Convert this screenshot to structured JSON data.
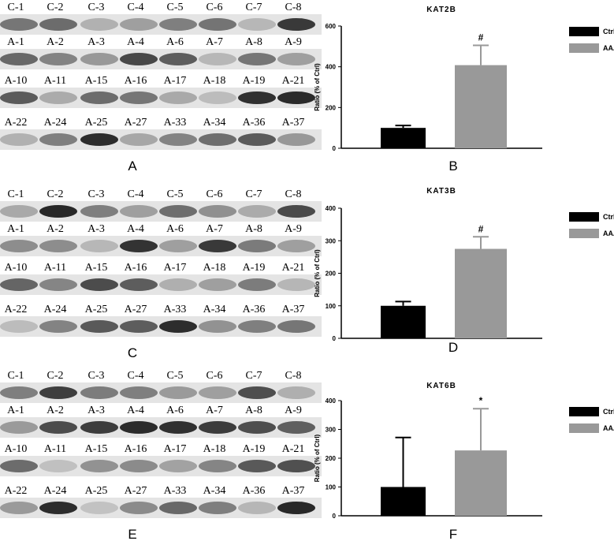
{
  "blots": [
    {
      "panel": "A",
      "rows": [
        [
          "C-1",
          "C-2",
          "C-3",
          "C-4",
          "C-5",
          "C-6",
          "C-7",
          "C-8"
        ],
        [
          "A-1",
          "A-2",
          "A-3",
          "A-4",
          "A-6",
          "A-7",
          "A-8",
          "A-9"
        ],
        [
          "A-10",
          "A-11",
          "A-15",
          "A-16",
          "A-17",
          "A-18",
          "A-19",
          "A-21"
        ],
        [
          "A-22",
          "A-24",
          "A-25",
          "A-27",
          "A-33",
          "A-34",
          "A-36",
          "A-37"
        ]
      ]
    },
    {
      "panel": "C",
      "rows": [
        [
          "C-1",
          "C-2",
          "C-3",
          "C-4",
          "C-5",
          "C-6",
          "C-7",
          "C-8"
        ],
        [
          "A-1",
          "A-2",
          "A-3",
          "A-4",
          "A-6",
          "A-7",
          "A-8",
          "A-9"
        ],
        [
          "A-10",
          "A-11",
          "A-15",
          "A-16",
          "A-17",
          "A-18",
          "A-19",
          "A-21"
        ],
        [
          "A-22",
          "A-24",
          "A-25",
          "A-27",
          "A-33",
          "A-34",
          "A-36",
          "A-37"
        ]
      ]
    },
    {
      "panel": "E",
      "rows": [
        [
          "C-1",
          "C-2",
          "C-3",
          "C-4",
          "C-5",
          "C-6",
          "C-7",
          "C-8"
        ],
        [
          "A-1",
          "A-2",
          "A-3",
          "A-4",
          "A-6",
          "A-7",
          "A-8",
          "A-9"
        ],
        [
          "A-10",
          "A-11",
          "A-15",
          "A-16",
          "A-17",
          "A-18",
          "A-19",
          "A-21"
        ],
        [
          "A-22",
          "A-24",
          "A-25",
          "A-27",
          "A-33",
          "A-34",
          "A-36",
          "A-37"
        ]
      ]
    }
  ],
  "chart_data": [
    {
      "type": "bar",
      "panel": "B",
      "title": "KAT2B",
      "y_label": "Ratio (% of Ctrl)",
      "ylim": [
        0,
        600
      ],
      "yticks": [
        0,
        200,
        400,
        600
      ],
      "series": [
        {
          "name": "Ctrl",
          "color": "#000000",
          "values": [
            100
          ],
          "errors": [
            12
          ]
        },
        {
          "name": "AAA",
          "color": "#999999",
          "values": [
            408
          ],
          "errors": [
            97
          ]
        }
      ],
      "annotation": "#"
    },
    {
      "type": "bar",
      "panel": "D",
      "title": "KAT3B",
      "y_label": "Ratio (% of Ctrl)",
      "ylim": [
        0,
        400
      ],
      "yticks": [
        0,
        100,
        200,
        300,
        400
      ],
      "series": [
        {
          "name": "Ctrl",
          "color": "#000000",
          "values": [
            100
          ],
          "errors": [
            13
          ]
        },
        {
          "name": "AAA",
          "color": "#999999",
          "values": [
            275
          ],
          "errors": [
            37
          ]
        }
      ],
      "annotation": "#"
    },
    {
      "type": "bar",
      "panel": "F",
      "title": "KAT6B",
      "y_label": "Ratio (% of Ctrl)",
      "ylim": [
        0,
        400
      ],
      "yticks": [
        0,
        100,
        200,
        300,
        400
      ],
      "series": [
        {
          "name": "Ctrl",
          "color": "#000000",
          "values": [
            100
          ],
          "errors": [
            172
          ]
        },
        {
          "name": "AAA",
          "color": "#999999",
          "values": [
            227
          ],
          "errors": [
            145
          ]
        }
      ],
      "annotation": "*"
    }
  ]
}
